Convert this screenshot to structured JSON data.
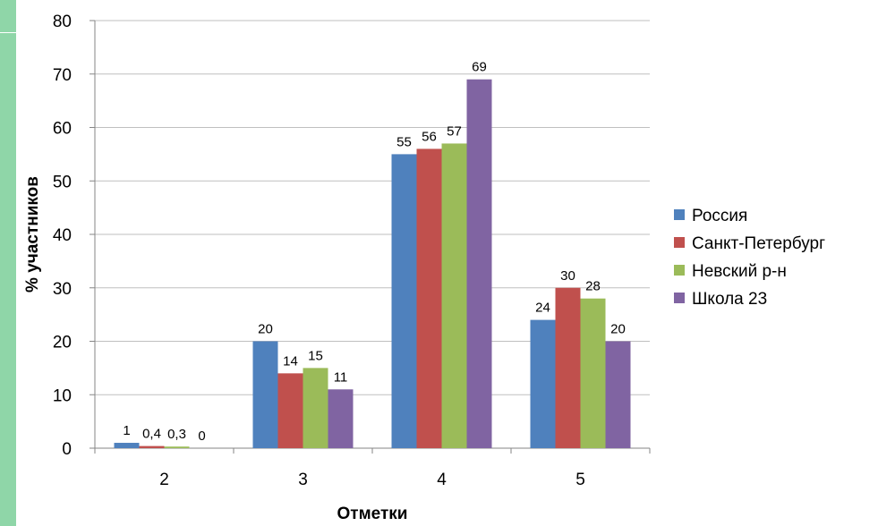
{
  "chart_data": {
    "type": "bar",
    "xlabel": "Отметки",
    "ylabel": "% участников",
    "ylim": [
      0,
      80
    ],
    "yticks": [
      0,
      10,
      20,
      30,
      40,
      50,
      60,
      70,
      80
    ],
    "grid": true,
    "legend_position": "right",
    "categories": [
      "2",
      "3",
      "4",
      "5"
    ],
    "series": [
      {
        "name": "Россия",
        "color": "#4f81bd",
        "values": [
          1,
          20,
          55,
          24
        ],
        "labels": [
          "1",
          "20",
          "55",
          "24"
        ]
      },
      {
        "name": "Санкт-Петербург",
        "color": "#c0504d",
        "values": [
          0.4,
          14,
          56,
          30
        ],
        "labels": [
          "0,4",
          "14",
          "56",
          "30"
        ]
      },
      {
        "name": "Невский р-н",
        "color": "#9bbb59",
        "values": [
          0.3,
          15,
          57,
          28
        ],
        "labels": [
          "0,3",
          "15",
          "57",
          "28"
        ]
      },
      {
        "name": "Школа 23",
        "color": "#8064a2",
        "values": [
          0,
          11,
          69,
          20
        ],
        "labels": [
          "0",
          "11",
          "69",
          "20"
        ]
      }
    ]
  }
}
